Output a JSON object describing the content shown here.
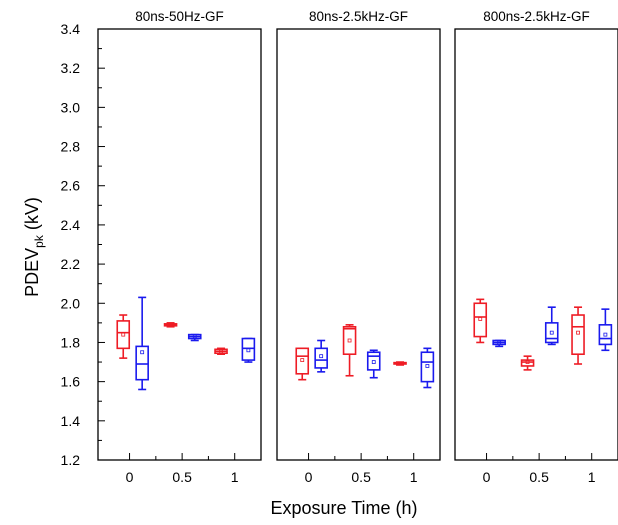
{
  "chart_data": {
    "type": "box",
    "ylabel": {
      "main": "PDEV",
      "sub": "pk",
      "unit": " (kV)"
    },
    "xlabel": "Exposure Time (h)",
    "ylim": [
      1.2,
      3.4
    ],
    "yticks": [
      "1.2",
      "1.4",
      "1.6",
      "1.8",
      "2.0",
      "2.2",
      "2.4",
      "2.6",
      "2.8",
      "3.0",
      "3.2",
      "3.4"
    ],
    "xlim": [
      -0.3,
      1.25
    ],
    "xticks": [
      "0",
      "0.5",
      "1"
    ],
    "colors": {
      "red": "#ee1c25",
      "blue": "#1a1aee"
    },
    "panels": [
      {
        "title": "80ns-50Hz-GF",
        "boxes": [
          {
            "x": -0.06,
            "color": "red",
            "min": 1.72,
            "q1": 1.77,
            "median": 1.85,
            "q3": 1.91,
            "max": 1.94,
            "mean": 1.84
          },
          {
            "x": 0.12,
            "color": "blue",
            "min": 1.56,
            "q1": 1.61,
            "median": 1.69,
            "q3": 1.78,
            "max": 2.03,
            "mean": 1.75
          },
          {
            "x": 0.39,
            "color": "red",
            "min": 1.88,
            "q1": 1.885,
            "median": 1.89,
            "q3": 1.895,
            "max": 1.9,
            "mean": 1.89
          },
          {
            "x": 0.62,
            "color": "blue",
            "min": 1.81,
            "q1": 1.82,
            "median": 1.83,
            "q3": 1.84,
            "max": 1.84,
            "mean": 1.83
          },
          {
            "x": 0.87,
            "color": "red",
            "min": 1.74,
            "q1": 1.745,
            "median": 1.755,
            "q3": 1.765,
            "max": 1.77,
            "mean": 1.755
          },
          {
            "x": 1.13,
            "color": "blue",
            "min": 1.7,
            "q1": 1.71,
            "median": 1.77,
            "q3": 1.82,
            "max": 1.82,
            "mean": 1.76
          }
        ]
      },
      {
        "title": "80ns-2.5kHz-GF",
        "boxes": [
          {
            "x": -0.06,
            "color": "red",
            "min": 1.61,
            "q1": 1.64,
            "median": 1.73,
            "q3": 1.77,
            "max": 1.77,
            "mean": 1.71
          },
          {
            "x": 0.12,
            "color": "blue",
            "min": 1.65,
            "q1": 1.67,
            "median": 1.71,
            "q3": 1.77,
            "max": 1.81,
            "mean": 1.73
          },
          {
            "x": 0.39,
            "color": "red",
            "min": 1.63,
            "q1": 1.74,
            "median": 1.87,
            "q3": 1.88,
            "max": 1.89,
            "mean": 1.81
          },
          {
            "x": 0.62,
            "color": "blue",
            "min": 1.62,
            "q1": 1.66,
            "median": 1.73,
            "q3": 1.75,
            "max": 1.76,
            "mean": 1.7
          },
          {
            "x": 0.87,
            "color": "red",
            "min": 1.685,
            "q1": 1.69,
            "median": 1.693,
            "q3": 1.697,
            "max": 1.7,
            "mean": 1.693
          },
          {
            "x": 1.13,
            "color": "blue",
            "min": 1.57,
            "q1": 1.6,
            "median": 1.7,
            "q3": 1.75,
            "max": 1.77,
            "mean": 1.68
          }
        ]
      },
      {
        "title": "800ns-2.5kHz-GF",
        "boxes": [
          {
            "x": -0.06,
            "color": "red",
            "min": 1.8,
            "q1": 1.83,
            "median": 1.93,
            "q3": 2.0,
            "max": 2.02,
            "mean": 1.92
          },
          {
            "x": 0.12,
            "color": "blue",
            "min": 1.78,
            "q1": 1.79,
            "median": 1.8,
            "q3": 1.81,
            "max": 1.81,
            "mean": 1.8
          },
          {
            "x": 0.39,
            "color": "red",
            "min": 1.66,
            "q1": 1.68,
            "median": 1.7,
            "q3": 1.71,
            "max": 1.73,
            "mean": 1.7
          },
          {
            "x": 0.62,
            "color": "blue",
            "min": 1.79,
            "q1": 1.8,
            "median": 1.82,
            "q3": 1.9,
            "max": 1.98,
            "mean": 1.85
          },
          {
            "x": 0.87,
            "color": "red",
            "min": 1.69,
            "q1": 1.74,
            "median": 1.88,
            "q3": 1.94,
            "max": 1.98,
            "mean": 1.85
          },
          {
            "x": 1.13,
            "color": "blue",
            "min": 1.76,
            "q1": 1.79,
            "median": 1.82,
            "q3": 1.89,
            "max": 1.97,
            "mean": 1.84
          }
        ]
      }
    ]
  }
}
